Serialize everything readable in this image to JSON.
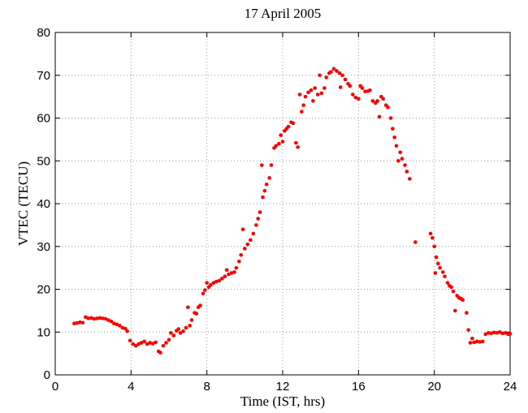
{
  "chart_data": {
    "type": "scatter",
    "title": "17 April 2005",
    "x_label": "Time (IST, hrs)",
    "y_label": "VTEC (TECU)",
    "xlim": [
      0,
      24
    ],
    "ylim": [
      0,
      80
    ],
    "xticks": [
      0,
      4,
      8,
      12,
      16,
      20,
      24
    ],
    "yticks": [
      0,
      10,
      20,
      30,
      40,
      50,
      60,
      70,
      80
    ],
    "grid": true,
    "color": "#ff0000",
    "x": [
      1.0,
      1.15,
      1.3,
      1.45,
      1.6,
      1.75,
      1.9,
      2.05,
      2.2,
      2.35,
      2.5,
      2.65,
      2.8,
      2.95,
      3.1,
      3.25,
      3.4,
      3.55,
      3.7,
      3.8,
      3.95,
      4.1,
      4.25,
      4.4,
      4.55,
      4.7,
      4.85,
      5.0,
      5.15,
      5.3,
      5.45,
      5.55,
      5.7,
      5.85,
      6.0,
      6.1,
      6.25,
      6.4,
      6.5,
      6.6,
      6.75,
      6.9,
      7.0,
      7.1,
      7.2,
      7.35,
      7.45,
      7.55,
      7.65,
      7.8,
      7.9,
      8.0,
      8.1,
      8.2,
      8.35,
      8.5,
      8.65,
      8.8,
      8.95,
      9.05,
      9.15,
      9.3,
      9.45,
      9.55,
      9.7,
      9.8,
      9.9,
      10.0,
      10.15,
      10.3,
      10.45,
      10.6,
      10.7,
      10.8,
      10.9,
      10.95,
      11.05,
      11.15,
      11.3,
      11.4,
      11.55,
      11.65,
      11.8,
      11.9,
      12.0,
      12.1,
      12.2,
      12.3,
      12.45,
      12.55,
      12.7,
      12.8,
      12.9,
      13.0,
      13.1,
      13.2,
      13.35,
      13.5,
      13.6,
      13.7,
      13.85,
      13.95,
      14.05,
      14.2,
      14.3,
      14.45,
      14.55,
      14.7,
      14.85,
      15.0,
      15.05,
      15.15,
      15.3,
      15.45,
      15.55,
      15.7,
      15.85,
      16.0,
      16.1,
      16.2,
      16.35,
      16.5,
      16.6,
      16.75,
      16.9,
      17.0,
      17.1,
      17.2,
      17.3,
      17.45,
      17.55,
      17.7,
      17.8,
      17.9,
      18.0,
      18.1,
      18.2,
      18.3,
      18.45,
      18.55,
      18.7,
      19.0,
      19.8,
      19.9,
      20.0,
      20.1,
      20.05,
      20.2,
      20.3,
      20.45,
      20.55,
      20.7,
      20.8,
      20.9,
      21.0,
      21.1,
      21.2,
      21.3,
      21.4,
      21.5,
      21.7,
      21.8,
      21.9,
      22.0,
      22.1,
      22.25,
      22.4,
      22.55,
      22.7,
      22.85,
      23.0,
      23.15,
      23.3,
      23.45,
      23.6,
      23.75,
      23.9,
      24.0
    ],
    "values": [
      12.0,
      12.1,
      12.3,
      12.2,
      13.5,
      13.2,
      13.3,
      13.1,
      13.2,
      13.3,
      13.2,
      13.1,
      12.8,
      12.5,
      12.0,
      11.8,
      11.5,
      11.0,
      10.8,
      10.2,
      8.0,
      7.2,
      6.8,
      7.2,
      7.5,
      7.8,
      7.2,
      7.5,
      7.3,
      7.6,
      5.5,
      5.2,
      6.8,
      7.5,
      8.2,
      9.8,
      9.2,
      10.3,
      10.7,
      9.8,
      10.2,
      11.0,
      15.8,
      11.5,
      12.8,
      14.5,
      14.3,
      15.8,
      16.2,
      19.0,
      19.8,
      21.5,
      20.5,
      21.0,
      21.5,
      21.8,
      22.0,
      22.5,
      23.0,
      24.5,
      23.5,
      23.8,
      24.0,
      25.0,
      26.5,
      28.0,
      34.0,
      29.5,
      30.5,
      31.5,
      33.0,
      35.0,
      36.5,
      38.0,
      49.0,
      41.5,
      43.0,
      44.5,
      46.0,
      49.0,
      53.0,
      53.5,
      54.0,
      56.0,
      54.5,
      57.0,
      57.5,
      58.0,
      59.0,
      58.8,
      54.2,
      53.2,
      65.5,
      61.5,
      63.0,
      65.0,
      66.0,
      66.5,
      64.0,
      67.0,
      65.5,
      70.0,
      65.8,
      67.0,
      69.5,
      70.5,
      70.8,
      71.5,
      71.0,
      70.5,
      67.2,
      70.0,
      69.0,
      68.0,
      67.5,
      65.5,
      64.8,
      64.5,
      67.5,
      67.0,
      66.2,
      66.3,
      66.5,
      64.0,
      63.5,
      64.0,
      60.3,
      65.0,
      64.5,
      63.0,
      62.5,
      60.0,
      57.5,
      55.5,
      53.5,
      50.0,
      52.0,
      50.5,
      49.0,
      47.5,
      45.8,
      31.0,
      33.0,
      32.0,
      30.0,
      27.5,
      23.8,
      26.0,
      25.0,
      24.0,
      23.0,
      21.5,
      20.8,
      20.5,
      19.5,
      15.0,
      18.5,
      18.0,
      17.8,
      17.5,
      14.5,
      10.5,
      7.5,
      8.5,
      7.6,
      7.8,
      7.7,
      7.8,
      9.5,
      9.8,
      9.7,
      9.9,
      9.8,
      10.0,
      9.7,
      9.8,
      9.5,
      9.6
    ]
  }
}
